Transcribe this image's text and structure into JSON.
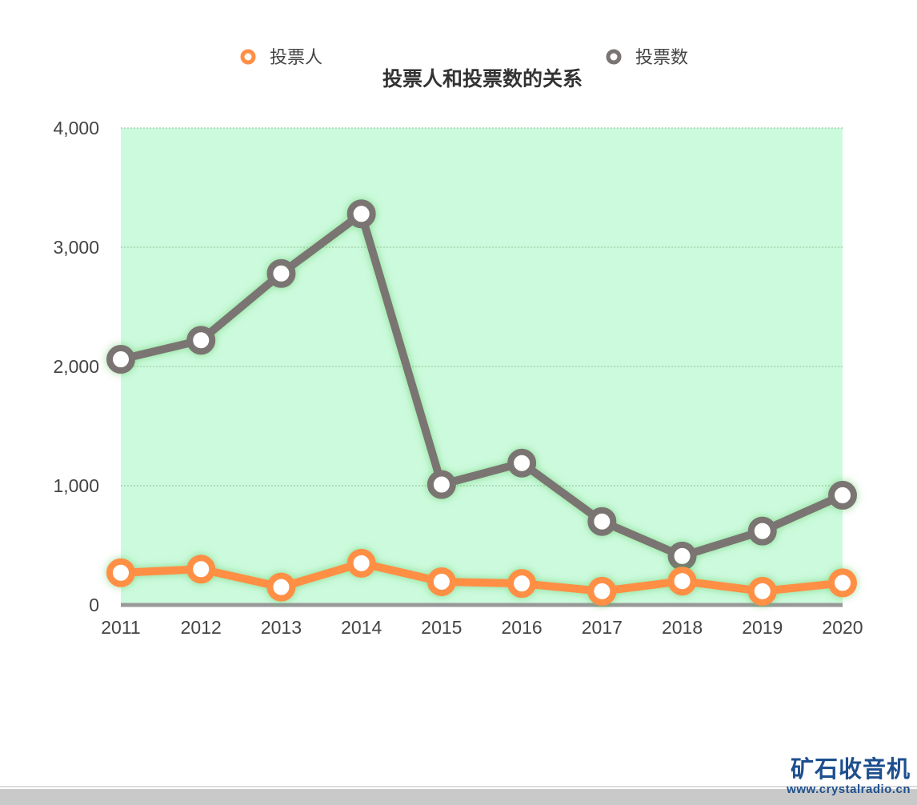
{
  "chart_data": {
    "type": "line",
    "title": "投票人和投票数的关系",
    "categories": [
      "2011",
      "2012",
      "2013",
      "2014",
      "2015",
      "2016",
      "2017",
      "2018",
      "2019",
      "2020"
    ],
    "series": [
      {
        "name": "投票人",
        "color": "#ff8f45",
        "values": [
          270,
          300,
          150,
          350,
          195,
          180,
          115,
          200,
          115,
          185
        ]
      },
      {
        "name": "投票数",
        "color": "#7a7572",
        "values": [
          2060,
          2220,
          2780,
          3280,
          1010,
          1190,
          700,
          410,
          620,
          920
        ]
      }
    ],
    "ylim": [
      0,
      4000
    ],
    "yticks": [
      "0",
      "1,000",
      "2,000",
      "3,000",
      "4,000"
    ],
    "ytick_values": [
      0,
      1000,
      2000,
      3000,
      4000
    ],
    "plot_background": "#ccfadd",
    "grid": true,
    "legend_position": "top"
  },
  "watermark": {
    "title": "矿石收音机",
    "url": "www.crystalradio.cn"
  }
}
